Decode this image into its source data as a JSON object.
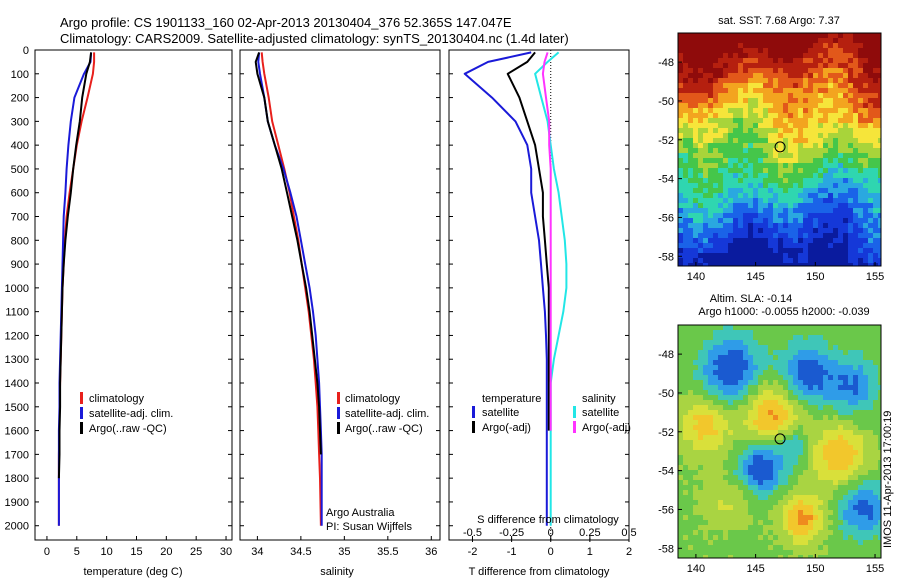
{
  "header": {
    "line1": "Argo profile: CS 1901133_160 02-Apr-2013 20130404_376 52.365S 147.047E",
    "line2": "Climatology: CARS2009. Satellite-adjusted climatology: synTS_20130404.nc (1.4d later)"
  },
  "colors": {
    "climatology": "#e8201c",
    "satellite": "#1a1ad8",
    "argo": "#000000",
    "argo_salinity_diff": "#ff33ff",
    "satellite_salinity_diff": "#22e6e6"
  },
  "depth_ticks": [
    "0",
    "100",
    "200",
    "300",
    "400",
    "500",
    "600",
    "700",
    "800",
    "900",
    "1000",
    "1100",
    "1200",
    "1300",
    "1400",
    "1500",
    "1600",
    "1700",
    "1800",
    "1900",
    "2000"
  ],
  "chart_data": [
    {
      "type": "line",
      "id": "temperature",
      "xlabel": "temperature (deg C)",
      "xlim": [
        -2,
        31
      ],
      "ylim": [
        2060,
        0
      ],
      "xticks": [
        "0",
        "5",
        "10",
        "15",
        "20",
        "25",
        "30"
      ],
      "legend": [
        "climatology",
        "satellite-adj. clim.",
        "Argo(..raw -QC)"
      ],
      "series": [
        {
          "name": "climatology",
          "x": [
            7.9,
            7.9,
            7.7,
            6.8,
            5.8,
            5.0,
            4.4,
            3.8,
            3.3,
            3.0,
            2.8,
            2.6,
            2.5,
            2.4,
            2.3,
            2.2,
            2.1,
            2.1,
            2.0,
            2.0,
            2.0
          ],
          "y": [
            10,
            50,
            100,
            200,
            300,
            400,
            500,
            600,
            700,
            800,
            900,
            1000,
            1100,
            1200,
            1300,
            1400,
            1500,
            1600,
            1700,
            1800,
            2000
          ]
        },
        {
          "name": "satellite-adj. clim.",
          "x": [
            7.4,
            7.3,
            6.2,
            4.6,
            4.0,
            3.6,
            3.3,
            3.1,
            2.8,
            2.7,
            2.6,
            2.5,
            2.4,
            2.3,
            2.2,
            2.1,
            2.1,
            2.0,
            2.0,
            2.0,
            2.0
          ],
          "y": [
            10,
            50,
            100,
            200,
            300,
            400,
            500,
            600,
            700,
            800,
            900,
            1000,
            1100,
            1200,
            1300,
            1400,
            1500,
            1600,
            1700,
            1800,
            2000
          ]
        },
        {
          "name": "Argo(..raw -QC)",
          "x": [
            7.4,
            7.2,
            6.6,
            5.9,
            5.5,
            4.9,
            4.4,
            4.0,
            3.5,
            3.1,
            2.8,
            2.6,
            2.5,
            2.4,
            2.3,
            2.2,
            2.2,
            2.1,
            2.1,
            2.0
          ],
          "y": [
            10,
            50,
            100,
            200,
            300,
            400,
            500,
            600,
            700,
            800,
            900,
            1000,
            1100,
            1200,
            1300,
            1400,
            1500,
            1600,
            1700,
            1800
          ]
        }
      ]
    },
    {
      "type": "line",
      "id": "salinity",
      "xlabel": "salinity",
      "xlim": [
        33.8,
        36.1
      ],
      "ylim": [
        2060,
        0
      ],
      "xticks": [
        "34",
        "34.5",
        "35",
        "35.5",
        "36"
      ],
      "legend": [
        "climatology",
        "satellite-adj. clim.",
        "Argo(..raw -QC)"
      ],
      "annotation": [
        "Argo Australia",
        "PI: Susan Wijffels"
      ],
      "series": [
        {
          "name": "climatology",
          "x": [
            34.05,
            34.06,
            34.08,
            34.13,
            34.17,
            34.24,
            34.31,
            34.37,
            34.42,
            34.47,
            34.51,
            34.55,
            34.59,
            34.62,
            34.65,
            34.67,
            34.69,
            34.7,
            34.71,
            34.72,
            34.73
          ],
          "y": [
            10,
            50,
            100,
            200,
            300,
            400,
            500,
            600,
            700,
            800,
            900,
            1000,
            1100,
            1200,
            1300,
            1400,
            1500,
            1600,
            1700,
            1800,
            2000
          ]
        },
        {
          "name": "satellite-adj. clim.",
          "x": [
            34.02,
            34.01,
            34.03,
            34.08,
            34.12,
            34.2,
            34.3,
            34.38,
            34.45,
            34.5,
            34.55,
            34.6,
            34.64,
            34.67,
            34.69,
            34.71,
            34.72,
            34.73,
            34.74,
            34.74,
            34.74
          ],
          "y": [
            10,
            50,
            100,
            200,
            300,
            400,
            500,
            600,
            700,
            800,
            900,
            1000,
            1100,
            1200,
            1300,
            1400,
            1500,
            1600,
            1700,
            1800,
            2000
          ]
        },
        {
          "name": "Argo(..raw -QC)",
          "x": [
            34.02,
            33.98,
            34.0,
            34.08,
            34.12,
            34.2,
            34.28,
            34.34,
            34.4,
            34.46,
            34.51,
            34.56,
            34.6,
            34.63,
            34.66,
            34.69,
            34.71,
            34.72,
            34.73
          ],
          "y": [
            10,
            50,
            100,
            200,
            300,
            400,
            500,
            600,
            700,
            800,
            900,
            1000,
            1100,
            1200,
            1300,
            1400,
            1500,
            1600,
            1700
          ]
        }
      ]
    },
    {
      "type": "line",
      "id": "difference",
      "xlabel": "T difference from climatology",
      "xlabel2": "S difference from climatology",
      "xlim": [
        -2.6,
        2.0
      ],
      "ylim": [
        2060,
        0
      ],
      "xticks": [
        "-2",
        "-1",
        "0",
        "1",
        "2"
      ],
      "xticks_top": [
        "-0.5",
        "-0.25",
        "0",
        "0.25",
        "0.5"
      ],
      "legend_headers": [
        "temperature",
        "salinity"
      ],
      "legend": [
        "satellite",
        "Argo(-adj)",
        "satellite",
        "Argo(-adj)"
      ],
      "series": [
        {
          "name": "satellite",
          "quantity": "temperature",
          "x": [
            -0.5,
            -1.6,
            -2.2,
            -1.5,
            -0.9,
            -0.6,
            -0.5,
            -0.5,
            -0.4,
            -0.3,
            -0.25,
            -0.2,
            -0.15,
            -0.12,
            -0.1,
            -0.1,
            -0.1,
            -0.1,
            -0.1
          ],
          "y": [
            10,
            50,
            100,
            200,
            300,
            400,
            500,
            600,
            700,
            800,
            900,
            1000,
            1100,
            1200,
            1300,
            1400,
            1500,
            1600,
            2000
          ]
        },
        {
          "name": "Argo(-adj)",
          "quantity": "temperature",
          "x": [
            -0.4,
            -0.6,
            -1.1,
            -0.8,
            -0.6,
            -0.4,
            -0.3,
            -0.2,
            -0.2,
            -0.15,
            -0.1,
            -0.05,
            -0.05,
            -0.05,
            -0.05,
            -0.05,
            -0.05,
            -0.05
          ],
          "y": [
            10,
            50,
            100,
            200,
            300,
            400,
            500,
            600,
            700,
            800,
            900,
            1000,
            1100,
            1200,
            1300,
            1400,
            1500,
            1600
          ]
        },
        {
          "name": "satellite",
          "quantity": "salinity",
          "x": [
            0.05,
            -0.02,
            -0.1,
            -0.06,
            -0.02,
            0.0,
            0.02,
            0.05,
            0.07,
            0.09,
            0.1,
            0.1,
            0.08,
            0.05,
            0.02,
            0.0,
            0.0,
            0.0,
            0.0
          ],
          "y": [
            10,
            50,
            100,
            200,
            300,
            400,
            500,
            600,
            700,
            800,
            900,
            1000,
            1100,
            1200,
            1300,
            1400,
            1500,
            1600,
            2000
          ]
        },
        {
          "name": "Argo(-adj)",
          "quantity": "salinity",
          "x": [
            -0.02,
            -0.04,
            -0.05,
            -0.03,
            -0.01,
            -0.01,
            0.0,
            0.0,
            0.0,
            0.0,
            0.0,
            0.0,
            0.0,
            0.0,
            0.0,
            0.0,
            0.0,
            0.0
          ],
          "y": [
            10,
            50,
            100,
            200,
            300,
            400,
            500,
            600,
            700,
            800,
            900,
            1000,
            1100,
            1200,
            1300,
            1400,
            1500,
            1600
          ]
        }
      ]
    },
    {
      "type": "heatmap",
      "id": "sst_map",
      "title": "sat. SST: 7.68 Argo: 7.37",
      "xlim": [
        138.5,
        155.5
      ],
      "ylim": [
        -58.5,
        -46.5
      ],
      "xticks": [
        "140",
        "145",
        "150",
        "155"
      ],
      "yticks": [
        "-48",
        "-50",
        "-52",
        "-54",
        "-56",
        "-58"
      ],
      "marker": {
        "lon": 147.047,
        "lat": -52.365
      }
    },
    {
      "type": "heatmap",
      "id": "sla_map",
      "title": "Altim. SLA: -0.14",
      "subtitle": "Argo h1000: -0.0055 h2000: -0.039",
      "xlim": [
        138.5,
        155.5
      ],
      "ylim": [
        -58.5,
        -46.5
      ],
      "xticks": [
        "140",
        "145",
        "150",
        "155"
      ],
      "yticks": [
        "-48",
        "-50",
        "-52",
        "-54",
        "-56",
        "-58"
      ],
      "marker": {
        "lon": 147.047,
        "lat": -52.365
      },
      "side_label": "IMOS 11-Apr-2013 17:00:19"
    }
  ]
}
